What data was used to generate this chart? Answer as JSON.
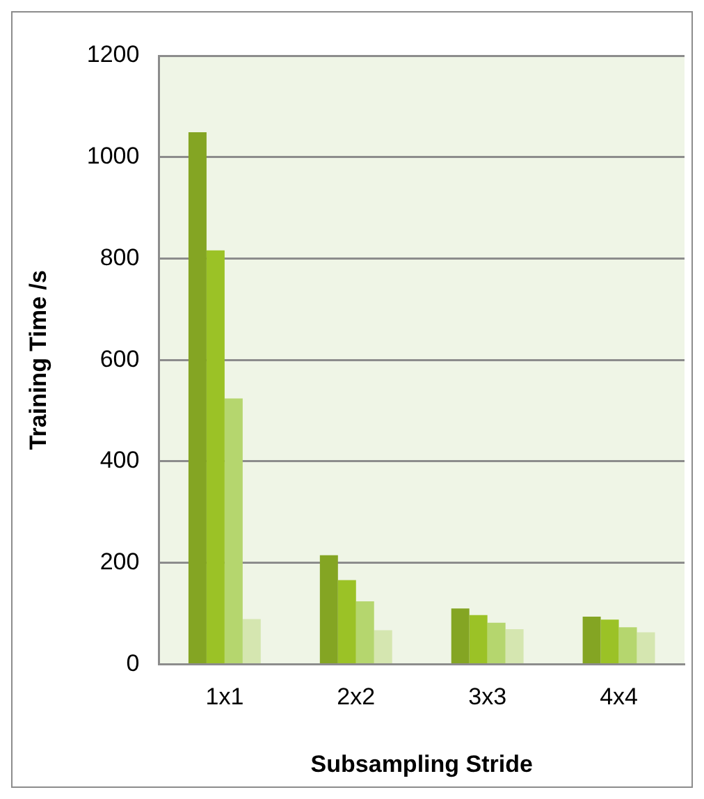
{
  "chart_data": {
    "type": "bar",
    "xlabel": "Subsampling Stride",
    "ylabel": "Training Time /s",
    "categories": [
      "1x1",
      "2x2",
      "3x3",
      "4x4"
    ],
    "series": [
      {
        "color": "#84a523",
        "values": [
          1049,
          215,
          110,
          94
        ]
      },
      {
        "color": "#9bc226",
        "values": [
          816,
          166,
          97,
          88
        ]
      },
      {
        "color": "#b5d66e",
        "values": [
          524,
          124,
          82,
          73
        ]
      },
      {
        "color": "#d5e6b0",
        "values": [
          89,
          67,
          69,
          63
        ]
      }
    ],
    "ylim": [
      0,
      1200
    ],
    "yticks": [
      0,
      200,
      400,
      600,
      800,
      1000,
      1200
    ],
    "grid": "y",
    "legend": false
  }
}
